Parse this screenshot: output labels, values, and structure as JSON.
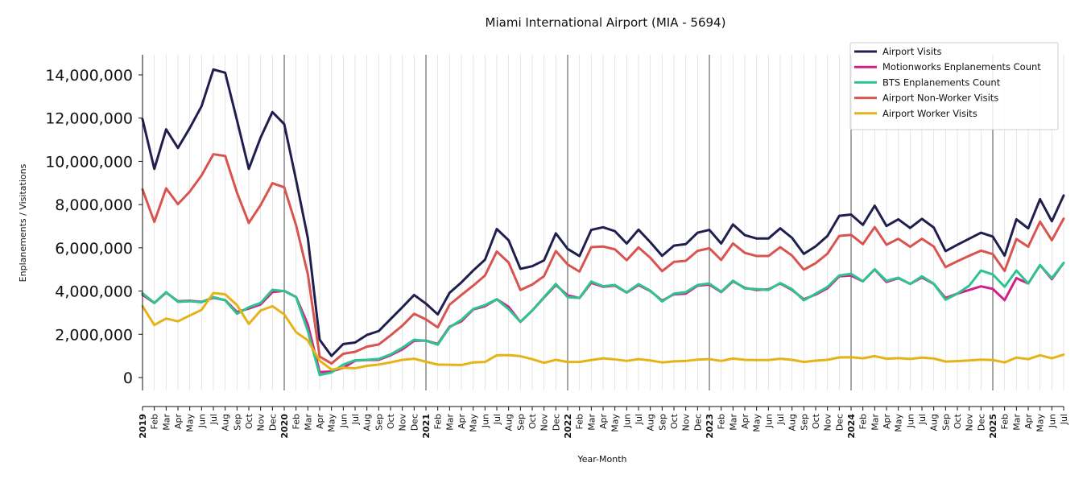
{
  "chart_data": {
    "type": "line",
    "title": "Miami International Airport (MIA - 5694)",
    "xlabel": "Year-Month",
    "ylabel": "Enplanements / Visitations",
    "ylim": [
      -500000,
      15000000
    ],
    "yticks": [
      0,
      2000000,
      4000000,
      6000000,
      8000000,
      10000000,
      12000000,
      14000000
    ],
    "ytick_labels": [
      "0",
      "2,000,000",
      "4,000,000",
      "6,000,000",
      "8,000,000",
      "10,000,000",
      "12,000,000",
      "14,000,000"
    ],
    "legend_position": "top-right",
    "grid": "vertical",
    "x_labels": [
      "2019",
      "Feb",
      "Mar",
      "Apr",
      "May",
      "Jun",
      "Jul",
      "Aug",
      "Sep",
      "Oct",
      "Nov",
      "Dec",
      "2020",
      "Feb",
      "Mar",
      "Apr",
      "May",
      "Jun",
      "Jul",
      "Aug",
      "Sep",
      "Oct",
      "Nov",
      "Dec",
      "2021",
      "Feb",
      "Mar",
      "Apr",
      "May",
      "Jun",
      "Jul",
      "Aug",
      "Sep",
      "Oct",
      "Nov",
      "Dec",
      "2022",
      "Feb",
      "Mar",
      "Apr",
      "May",
      "Jun",
      "Jul",
      "Aug",
      "Sep",
      "Oct",
      "Nov",
      "Dec",
      "2023",
      "Feb",
      "Mar",
      "Apr",
      "May",
      "Jun",
      "Jul",
      "Aug",
      "Sep",
      "Oct",
      "Nov",
      "Dec",
      "2024",
      "Feb",
      "Mar",
      "Apr",
      "May",
      "Jun",
      "Jul",
      "Aug",
      "Sep",
      "Oct",
      "Nov",
      "Dec",
      "2025",
      "Feb",
      "Mar",
      "Apr",
      "May",
      "Jun",
      "Jul"
    ],
    "series": [
      {
        "name": "Airport Visits",
        "color": "#1f1f4f",
        "values": [
          11950000,
          9650000,
          11480000,
          10620000,
          11540000,
          12550000,
          14250000,
          14100000,
          11900000,
          9650000,
          11100000,
          12280000,
          11720000,
          9150000,
          6450000,
          1750000,
          1000000,
          1550000,
          1620000,
          1970000,
          2150000,
          2700000,
          3250000,
          3820000,
          3420000,
          2920000,
          3920000,
          4400000,
          4950000,
          5450000,
          6870000,
          6350000,
          5030000,
          5150000,
          5420000,
          6670000,
          5950000,
          5620000,
          6830000,
          6950000,
          6770000,
          6200000,
          6840000,
          6260000,
          5630000,
          6100000,
          6170000,
          6700000,
          6830000,
          6200000,
          7080000,
          6590000,
          6430000,
          6430000,
          6900000,
          6460000,
          5720000,
          6070000,
          6550000,
          7480000,
          7540000,
          7060000,
          7950000,
          7010000,
          7320000,
          6920000,
          7340000,
          6940000,
          5850000,
          6140000,
          6420000,
          6700000,
          6520000,
          5640000,
          7320000,
          6900000,
          8250000,
          7230000,
          8420000
        ]
      },
      {
        "name": "Motionworks Enplanements Count",
        "color": "#d0208a",
        "values": [
          3830000,
          3450000,
          3930000,
          3530000,
          3550000,
          3500000,
          3690000,
          3580000,
          3030000,
          3190000,
          3380000,
          3950000,
          4010000,
          3730000,
          2450000,
          250000,
          280000,
          450000,
          780000,
          810000,
          820000,
          1030000,
          1300000,
          1700000,
          1710000,
          1550000,
          2350000,
          2600000,
          3150000,
          3300000,
          3620000,
          3270000,
          2570000,
          3100000,
          3700000,
          4280000,
          3800000,
          3680000,
          4380000,
          4200000,
          4250000,
          3930000,
          4280000,
          4000000,
          3560000,
          3850000,
          3880000,
          4250000,
          4300000,
          3950000,
          4450000,
          4150000,
          4050000,
          4080000,
          4350000,
          4050000,
          3620000,
          3840000,
          4130000,
          4680000,
          4720000,
          4450000,
          5000000,
          4420000,
          4600000,
          4330000,
          4630000,
          4330000,
          3680000,
          3880000,
          4050000,
          4220000,
          4100000,
          3580000,
          4600000,
          4350000,
          5200000,
          4550000,
          5300000
        ]
      },
      {
        "name": "BTS Enplanements Count",
        "color": "#2ec48f",
        "values": [
          3900000,
          3450000,
          3950000,
          3500000,
          3530000,
          3480000,
          3720000,
          3570000,
          2950000,
          3250000,
          3450000,
          4060000,
          4000000,
          3720000,
          2150000,
          120000,
          230000,
          600000,
          800000,
          820000,
          860000,
          1070000,
          1380000,
          1750000,
          1700000,
          1520000,
          2320000,
          2670000,
          3170000,
          3350000,
          3620000,
          3160000,
          2580000,
          3100000,
          3720000,
          4330000,
          3720000,
          3680000,
          4440000,
          4220000,
          4280000,
          3940000,
          4320000,
          4020000,
          3520000,
          3880000,
          3950000,
          4280000,
          4350000,
          3970000,
          4480000,
          4120000,
          4090000,
          4050000,
          4370000,
          4090000,
          3570000,
          3880000,
          4190000,
          4720000,
          4800000,
          4450000,
          5010000,
          4470000,
          4620000,
          4330000,
          4680000,
          4340000,
          3600000,
          3880000,
          4250000,
          4950000,
          4770000,
          4200000,
          4950000,
          4350000,
          5200000,
          4600000,
          5300000
        ]
      },
      {
        "name": "Airport Non-Worker Visits",
        "color": "#d9534f",
        "values": [
          8700000,
          7200000,
          8750000,
          8020000,
          8600000,
          9350000,
          10330000,
          10250000,
          8550000,
          7150000,
          7980000,
          8990000,
          8800000,
          7050000,
          4780000,
          970000,
          650000,
          1100000,
          1190000,
          1430000,
          1530000,
          1950000,
          2400000,
          2950000,
          2690000,
          2320000,
          3370000,
          3820000,
          4250000,
          4720000,
          5830000,
          5320000,
          4050000,
          4300000,
          4690000,
          5850000,
          5230000,
          4900000,
          6030000,
          6060000,
          5930000,
          5430000,
          6020000,
          5540000,
          4920000,
          5350000,
          5400000,
          5860000,
          5980000,
          5440000,
          6200000,
          5770000,
          5620000,
          5620000,
          6030000,
          5640000,
          4990000,
          5290000,
          5730000,
          6550000,
          6600000,
          6170000,
          6960000,
          6140000,
          6420000,
          6050000,
          6420000,
          6060000,
          5110000,
          5380000,
          5630000,
          5870000,
          5710000,
          4930000,
          6410000,
          6050000,
          7210000,
          6350000,
          7350000
        ]
      },
      {
        "name": "Airport Worker Visits",
        "color": "#e6b317",
        "values": [
          3300000,
          2430000,
          2730000,
          2600000,
          2870000,
          3130000,
          3910000,
          3850000,
          3350000,
          2480000,
          3100000,
          3300000,
          2920000,
          2100000,
          1720000,
          780000,
          370000,
          450000,
          430000,
          540000,
          600000,
          700000,
          820000,
          870000,
          730000,
          600000,
          590000,
          580000,
          700000,
          720000,
          1030000,
          1040000,
          990000,
          850000,
          680000,
          820000,
          720000,
          720000,
          810000,
          890000,
          840000,
          770000,
          850000,
          790000,
          700000,
          750000,
          770000,
          830000,
          850000,
          770000,
          880000,
          820000,
          810000,
          810000,
          870000,
          820000,
          720000,
          780000,
          820000,
          930000,
          940000,
          890000,
          990000,
          870000,
          900000,
          860000,
          920000,
          880000,
          740000,
          760000,
          790000,
          830000,
          810000,
          700000,
          920000,
          850000,
          1030000,
          890000,
          1060000
        ]
      }
    ]
  }
}
